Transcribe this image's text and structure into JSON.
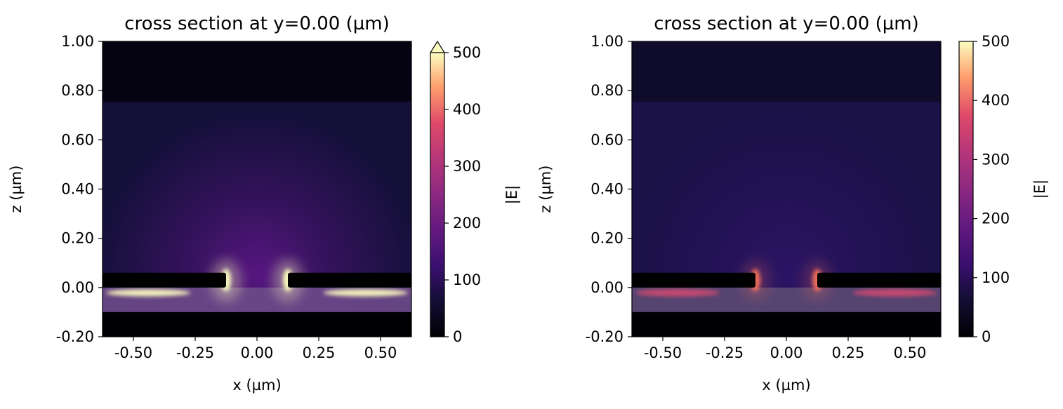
{
  "chart_data": [
    {
      "type": "heatmap",
      "title": "cross section at y=0.00 (µm)",
      "xlabel": "x (µm)",
      "ylabel": "z (µm)",
      "xlim": [
        -0.625,
        0.625
      ],
      "ylim": [
        -0.2,
        1.0
      ],
      "x_ticks": [
        "-0.50",
        "-0.25",
        "0.00",
        "0.25",
        "0.50"
      ],
      "x_tick_values": [
        -0.5,
        -0.25,
        0.0,
        0.25,
        0.5
      ],
      "y_ticks": [
        "-0.20",
        "0.00",
        "0.20",
        "0.40",
        "0.60",
        "0.80",
        "1.00"
      ],
      "y_tick_values": [
        -0.2,
        0.0,
        0.2,
        0.4,
        0.6,
        0.8,
        1.0
      ],
      "colorbar": {
        "label": "|E|",
        "range": [
          0,
          500
        ],
        "ticks": [
          "0",
          "100",
          "200",
          "300",
          "400",
          "500"
        ],
        "tick_values": [
          0,
          100,
          200,
          300,
          400,
          500
        ],
        "extend": "max",
        "colormap": "magma"
      },
      "features": {
        "metal_blocks": [
          {
            "x": [
              -0.625,
              -0.125
            ],
            "z": [
              0.0,
              0.06
            ]
          },
          {
            "x": [
              0.125,
              0.625
            ],
            "z": [
              0.0,
              0.06
            ]
          }
        ],
        "dielectric_layer": {
          "x": [
            -0.625,
            0.625
          ],
          "z": [
            -0.1,
            0.0
          ]
        },
        "hotspots": [
          {
            "x": -0.125,
            "z": 0.03,
            "value": 520
          },
          {
            "x": 0.125,
            "z": 0.03,
            "value": 520
          },
          {
            "x": -0.44,
            "z": -0.01,
            "value": 480
          },
          {
            "x": 0.44,
            "z": -0.01,
            "value": 480
          }
        ]
      }
    },
    {
      "type": "heatmap",
      "title": "cross section at y=0.00 (µm)",
      "xlabel": "x (µm)",
      "ylabel": "z (µm)",
      "xlim": [
        -0.625,
        0.625
      ],
      "ylim": [
        -0.2,
        1.0
      ],
      "x_ticks": [
        "-0.50",
        "-0.25",
        "0.00",
        "0.25",
        "0.50"
      ],
      "x_tick_values": [
        -0.5,
        -0.25,
        0.0,
        0.25,
        0.5
      ],
      "y_ticks": [
        "-0.20",
        "0.00",
        "0.20",
        "0.40",
        "0.60",
        "0.80",
        "1.00"
      ],
      "y_tick_values": [
        -0.2,
        0.0,
        0.2,
        0.4,
        0.6,
        0.8,
        1.0
      ],
      "colorbar": {
        "label": "|E|",
        "range": [
          0,
          500
        ],
        "ticks": [
          "0",
          "100",
          "200",
          "300",
          "400",
          "500"
        ],
        "tick_values": [
          0,
          100,
          200,
          300,
          400,
          500
        ],
        "extend": "none",
        "colormap": "magma"
      },
      "features": {
        "metal_blocks": [
          {
            "x": [
              -0.625,
              -0.125
            ],
            "z": [
              0.0,
              0.06
            ]
          },
          {
            "x": [
              0.125,
              0.625
            ],
            "z": [
              0.0,
              0.06
            ]
          }
        ],
        "dielectric_layer": {
          "x": [
            -0.625,
            0.625
          ],
          "z": [
            -0.1,
            0.0
          ]
        },
        "hotspots": [
          {
            "x": -0.125,
            "z": 0.03,
            "value": 300
          },
          {
            "x": 0.125,
            "z": 0.03,
            "value": 300
          },
          {
            "x": -0.44,
            "z": -0.01,
            "value": 250
          },
          {
            "x": 0.44,
            "z": -0.01,
            "value": 250
          }
        ]
      }
    }
  ]
}
